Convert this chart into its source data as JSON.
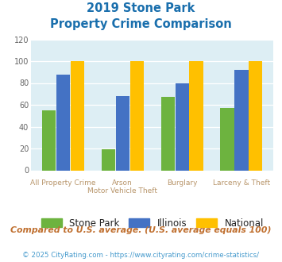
{
  "title_line1": "2019 Stone Park",
  "title_line2": "Property Crime Comparison",
  "cat_labels_top": [
    "",
    "Arson",
    "Burglary",
    ""
  ],
  "cat_labels_bottom": [
    "All Property Crime",
    "Motor Vehicle Theft",
    "",
    "Larceny & Theft"
  ],
  "stone_park": [
    55,
    19,
    67,
    57
  ],
  "illinois": [
    88,
    68,
    80,
    92
  ],
  "national": [
    100,
    100,
    100,
    100
  ],
  "colors": {
    "stone_park": "#6db33f",
    "illinois": "#4472c4",
    "national": "#ffc000",
    "background": "#ddeef4",
    "title": "#1a6fad",
    "axis_text": "#b8956a",
    "footnote": "#c07030",
    "copyright": "#4499cc"
  },
  "ylim": [
    0,
    120
  ],
  "yticks": [
    0,
    20,
    40,
    60,
    80,
    100,
    120
  ],
  "footnote": "Compared to U.S. average. (U.S. average equals 100)",
  "copyright": "© 2025 CityRating.com - https://www.cityrating.com/crime-statistics/"
}
